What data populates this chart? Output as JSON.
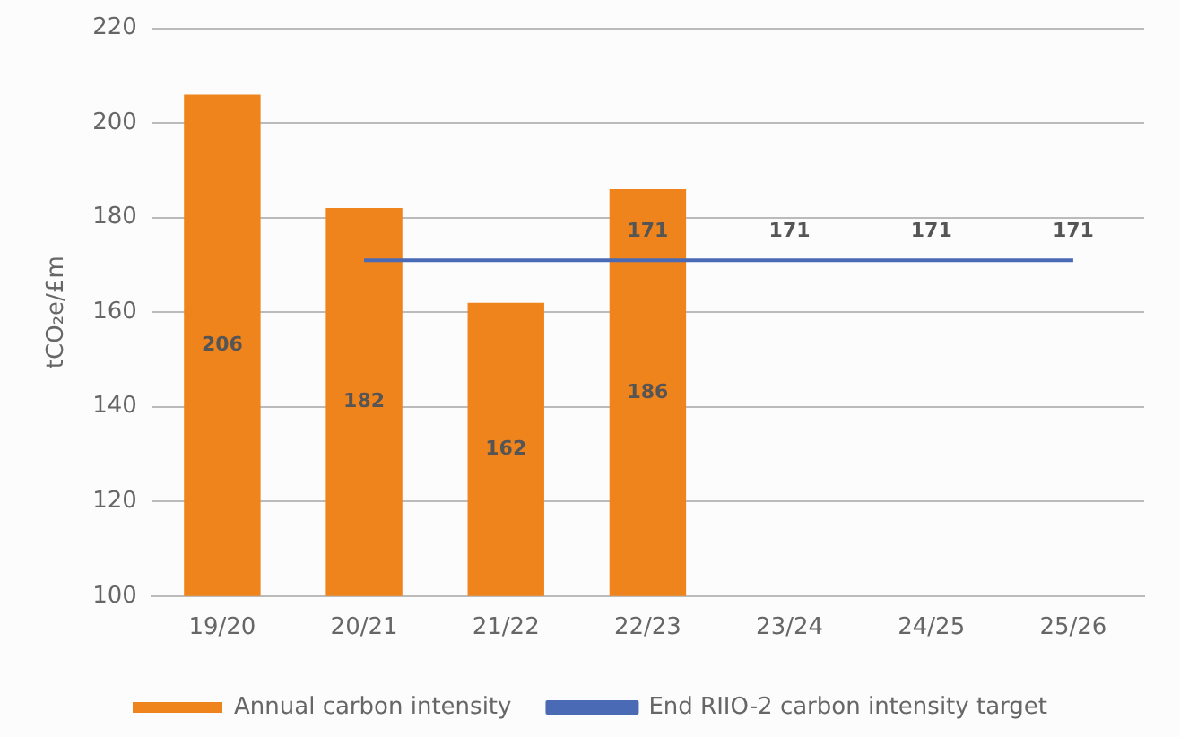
{
  "chart_data": {
    "type": "bar",
    "ylabel": "tCO₂e/£m",
    "categories": [
      "19/20",
      "20/21",
      "21/22",
      "22/23",
      "23/24",
      "24/25",
      "25/26"
    ],
    "series": [
      {
        "name": "Annual carbon intensity",
        "color": "#f0841c",
        "values": [
          206,
          182,
          162,
          186,
          null,
          null,
          null
        ],
        "value_labels": [
          "206",
          "182",
          "162",
          "186",
          null,
          null,
          null
        ]
      },
      {
        "name": "End RIIO-2 carbon intensity target",
        "type": "line",
        "color": "#4a6ab5",
        "values": [
          null,
          171,
          171,
          171,
          171,
          171,
          171
        ],
        "value_labels": [
          null,
          null,
          null,
          "171",
          "171",
          "171",
          "171"
        ]
      }
    ],
    "ylim": [
      100,
      220
    ],
    "yticks": [
      100,
      120,
      140,
      160,
      180,
      200,
      220
    ],
    "grid": "y",
    "legend": "bottom",
    "marker": "none"
  }
}
